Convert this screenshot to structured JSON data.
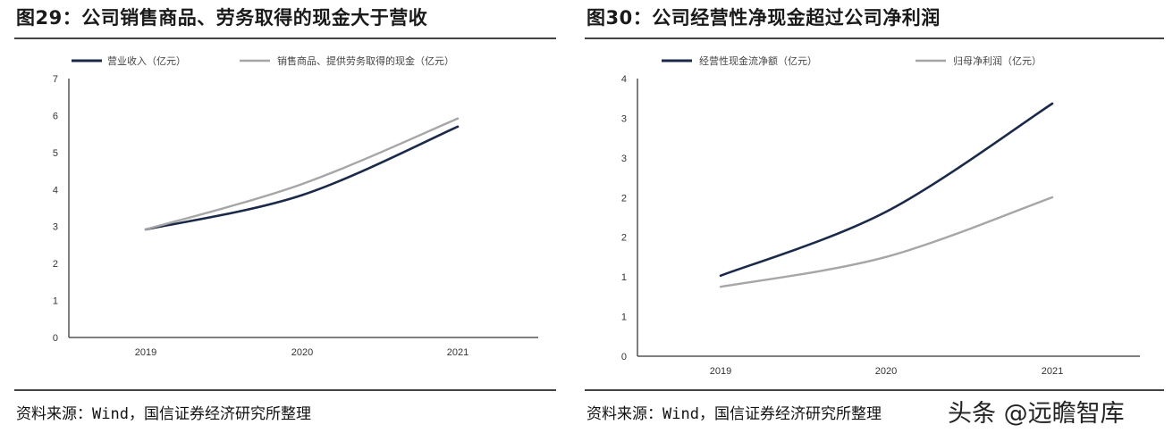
{
  "left": {
    "title": "图29：公司销售商品、劳务取得的现金大于营收",
    "source": "资料来源：Wind，国信证券经济研究所整理",
    "legend": [
      {
        "label": "营业收入（亿元）",
        "color": "#1b2a4a"
      },
      {
        "label": "销售商品、提供劳务取得的现金（亿元）",
        "color": "#a6a6a6"
      }
    ],
    "y_ticks": [
      "0",
      "1",
      "2",
      "3",
      "4",
      "5",
      "6",
      "7"
    ],
    "x_ticks": [
      "2019",
      "2020",
      "2021"
    ]
  },
  "right": {
    "title": "图30：公司经营性净现金超过公司净利润",
    "source": "资料来源：Wind，国信证券经济研究所整理",
    "legend": [
      {
        "label": "经营性现金流净额（亿元）",
        "color": "#1b2a4a"
      },
      {
        "label": "归母净利润（亿元）",
        "color": "#a6a6a6"
      }
    ],
    "y_ticks": [
      "0",
      "1",
      "1",
      "2",
      "2",
      "3",
      "3",
      "4"
    ],
    "x_ticks": [
      "2019",
      "2020",
      "2021"
    ]
  },
  "watermark": "头条 @远瞻智库",
  "chart_data": [
    {
      "type": "line",
      "title": "图29：公司销售商品、劳务取得的现金大于营收",
      "categories": [
        "2019",
        "2020",
        "2021"
      ],
      "series": [
        {
          "name": "营业收入（亿元）",
          "values": [
            2.92,
            3.85,
            5.7
          ],
          "color": "#1b2a4a"
        },
        {
          "name": "销售商品、提供劳务取得的现金（亿元）",
          "values": [
            2.92,
            4.15,
            5.92
          ],
          "color": "#a6a6a6"
        }
      ],
      "xlabel": "",
      "ylabel": "",
      "ylim": [
        0,
        7
      ],
      "grid": false,
      "legend_position": "top"
    },
    {
      "type": "line",
      "title": "图30：公司经营性净现金超过公司净利润",
      "categories": [
        "2019",
        "2020",
        "2021"
      ],
      "series": [
        {
          "name": "经营性现金流净额（亿元）",
          "values": [
            1.16,
            2.08,
            3.64
          ],
          "color": "#1b2a4a"
        },
        {
          "name": "归母净利润（亿元）",
          "values": [
            1.0,
            1.43,
            2.29
          ],
          "color": "#a6a6a6"
        }
      ],
      "xlabel": "",
      "ylabel": "",
      "ylim": [
        0,
        4
      ],
      "y_tick_labels": [
        "0",
        "1",
        "1",
        "2",
        "2",
        "3",
        "3",
        "4"
      ],
      "grid": false,
      "legend_position": "top"
    }
  ]
}
